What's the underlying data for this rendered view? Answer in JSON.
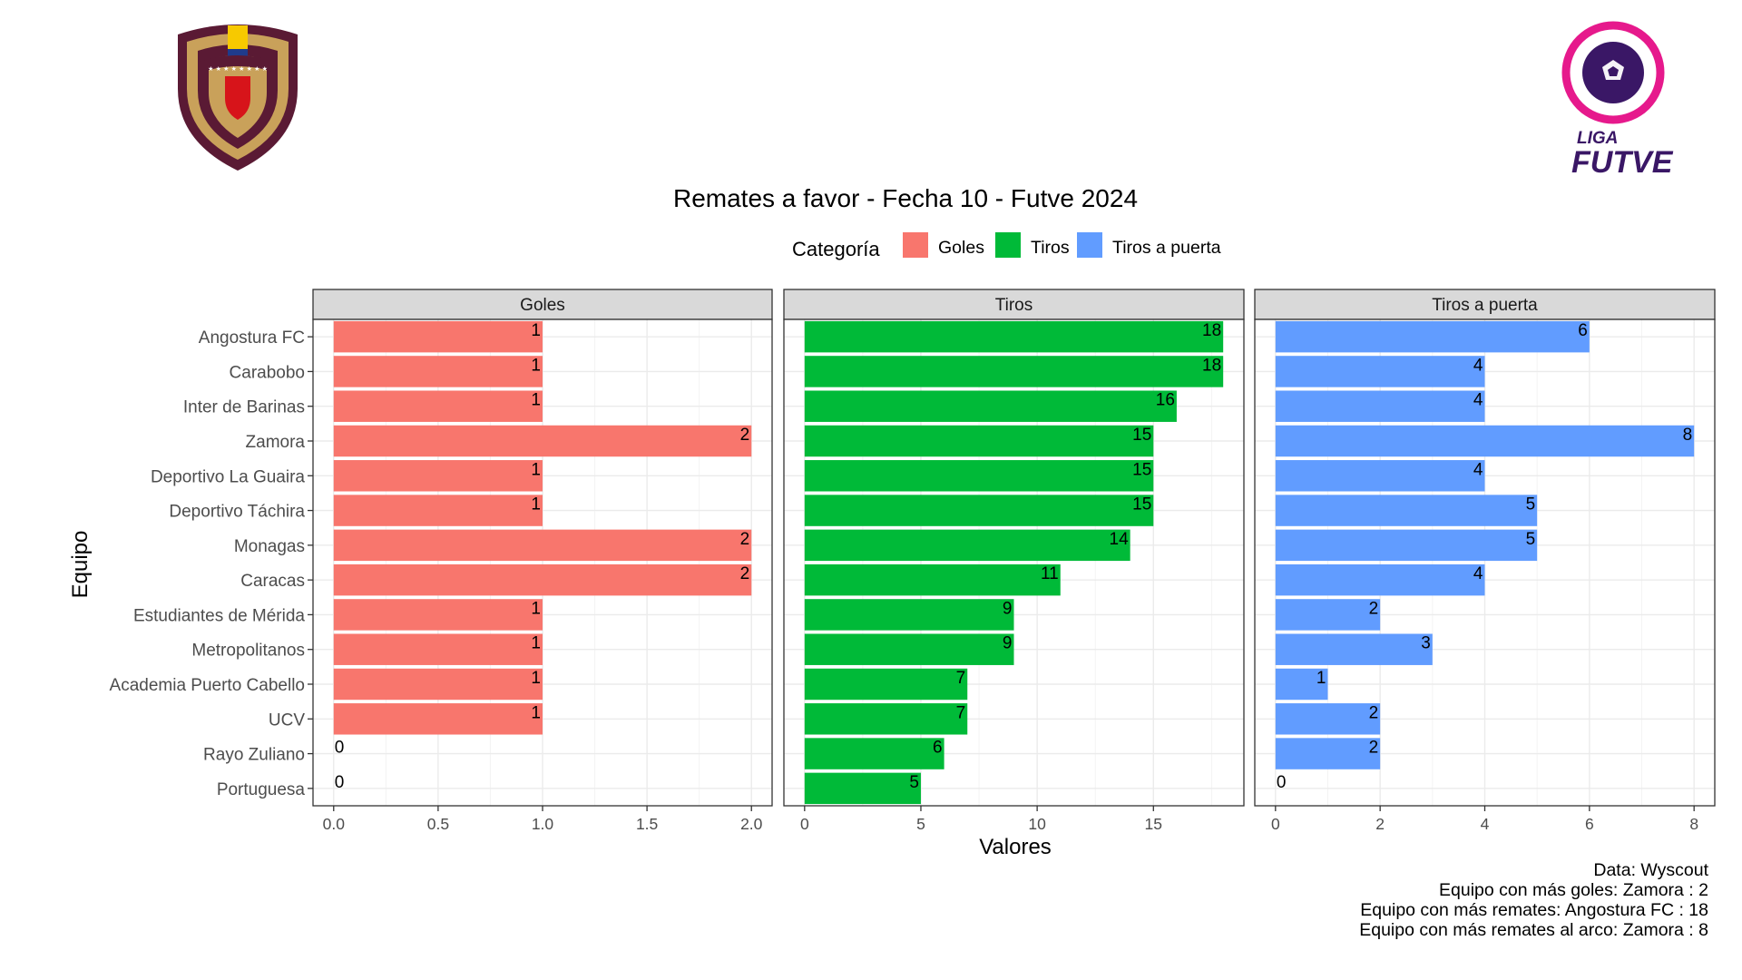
{
  "logos": {
    "left": "Venezuelan federation crest",
    "right_wordmark_top": "LIGA",
    "right_wordmark_bottom": "FUTVE"
  },
  "colors": {
    "goles": "#F8766D",
    "tiros": "#00BA38",
    "tiros_a_puerta": "#619CFF",
    "strip_bg": "#D9D9D9",
    "grid": "#EBEBEB",
    "crest_maroon": "#5A1A34",
    "crest_gold": "#C9A15A",
    "futve_pink": "#E6198C",
    "futve_purple": "#3A1766"
  },
  "chart_data": {
    "type": "bar",
    "orientation": "horizontal",
    "faceted": true,
    "title": "Remates a favor - Fecha 10 - Futve 2024",
    "xlabel": "Valores",
    "ylabel": "Equipo",
    "legend": {
      "title": "Categoría",
      "position": "top",
      "entries": [
        "Goles",
        "Tiros",
        "Tiros a puerta"
      ]
    },
    "grid": true,
    "categories": [
      "Angostura FC",
      "Carabobo",
      "Inter de Barinas",
      "Zamora",
      "Deportivo La Guaira",
      "Deportivo Táchira",
      "Monagas",
      "Caracas",
      "Estudiantes de Mérida",
      "Metropolitanos",
      "Academia Puerto Cabello",
      "UCV",
      "Rayo Zuliano",
      "Portuguesa"
    ],
    "facets": [
      {
        "name": "Goles",
        "color": "#F8766D",
        "values": [
          1,
          1,
          1,
          2,
          1,
          1,
          2,
          2,
          1,
          1,
          1,
          1,
          0,
          0
        ],
        "xlim": [
          0,
          2
        ],
        "ticks": [
          0,
          0.5,
          1,
          1.5,
          2
        ],
        "tick_labels": [
          "0.0",
          "0.5",
          "1.0",
          "1.5",
          "2.0"
        ]
      },
      {
        "name": "Tiros",
        "color": "#00BA38",
        "values": [
          18,
          18,
          16,
          15,
          15,
          15,
          14,
          11,
          9,
          9,
          7,
          7,
          6,
          5
        ],
        "xlim": [
          0,
          18
        ],
        "ticks": [
          0,
          5,
          10,
          15
        ],
        "tick_labels": [
          "0",
          "5",
          "10",
          "15"
        ]
      },
      {
        "name": "Tiros a puerta",
        "color": "#619CFF",
        "values": [
          6,
          4,
          4,
          8,
          4,
          5,
          5,
          4,
          2,
          3,
          1,
          2,
          2,
          0
        ],
        "xlim": [
          0,
          8
        ],
        "ticks": [
          0,
          2,
          4,
          6,
          8
        ],
        "tick_labels": [
          "0",
          "2",
          "4",
          "6",
          "8"
        ]
      }
    ]
  },
  "caption": {
    "line1": "Data: Wyscout ",
    "line2": "Equipo con más goles: Zamora : 2",
    "line3": "Equipo con más remates: Angostura FC : 18",
    "line4": "Equipo con más remates al arco: Zamora : 8"
  }
}
